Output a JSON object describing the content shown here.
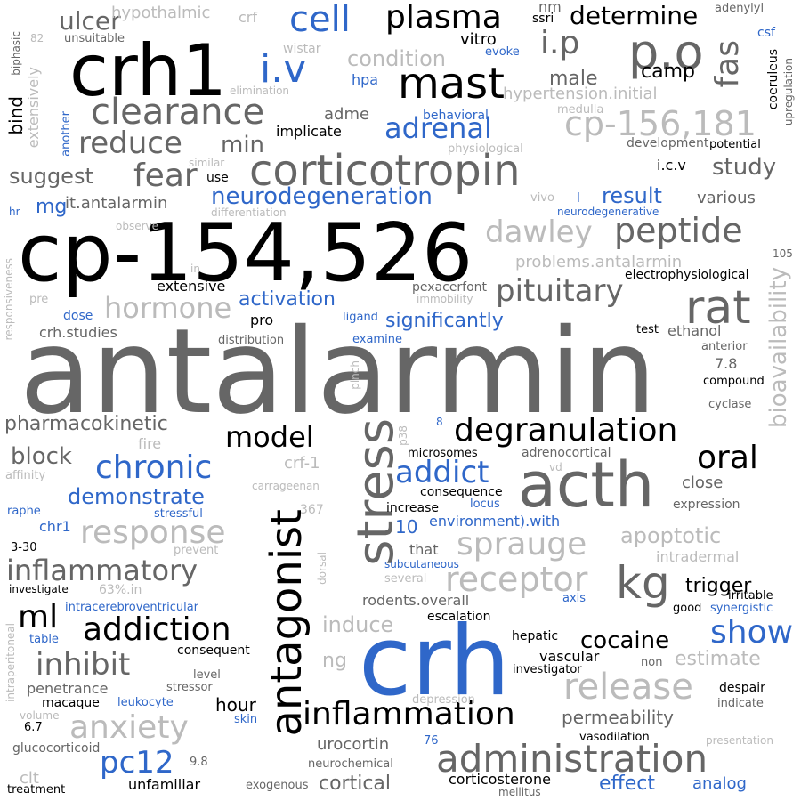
{
  "words": [
    "antalarmin",
    "cp-154,526",
    "crh",
    "crh1",
    "acth",
    "corticotropin",
    "stress",
    "antagonist",
    "mast",
    "cell",
    "plasma",
    "i.v",
    "p.o",
    "i.p",
    "fas",
    "clearance",
    "reduce",
    "fear",
    "kg",
    "rat",
    "peptide",
    "pituitary",
    "dawley",
    "hormone",
    "response",
    "chronic",
    "inflammatory",
    "inhibit",
    "anxiety",
    "addiction",
    "ml",
    "model",
    "degranulation",
    "oral",
    "administration",
    "inflammation",
    "release",
    "show",
    "pc12",
    "cocaine",
    "receptor",
    "sprauge",
    "adrenal",
    "addict",
    "activation",
    "neurodegeneration",
    "significantly",
    "demonstrate",
    "bioavailability",
    "cp-156,181",
    "determine",
    "condition",
    "ulcer",
    "min",
    "mg",
    "suggest",
    "study",
    "result",
    "camp",
    "male",
    "adme",
    "block",
    "hypothalmic",
    "crf",
    "adenylyl",
    "ssri",
    "nm",
    "vitro",
    "evoke",
    "hpa",
    "csf",
    "coeruleus",
    "upregulation",
    "medulla",
    "hypertension.initial",
    "elimination",
    "wistar",
    "unsuitable",
    "82",
    "biphasic",
    "extensively",
    "bind",
    "another",
    "behavioral",
    "implicate",
    "physiological",
    "development",
    "potential",
    "i.c.v",
    "similar",
    "use",
    "it.antalarmin",
    "vivo",
    "l",
    "various",
    "neurodegenerative",
    "differentiation",
    "hr",
    "observe",
    "problems.antalarmin",
    "105",
    "electrophysiological",
    "in",
    "extensive",
    "pexacerfont",
    "immobility",
    "pre",
    "dose",
    "ligand",
    "pro",
    "crh.studies",
    "distribution",
    "examine",
    "responsiveness",
    "test",
    "ethanol",
    "anterior",
    "pinch",
    "7.8",
    "compound",
    "cyclase",
    "pharmacokinetic",
    "fire",
    "p38",
    "8",
    "microsomes",
    "adrenocortical",
    "affinity",
    "crf-1",
    "carrageenan",
    "consequence",
    "vd",
    "increase",
    "locus",
    "close",
    "expression",
    "raphe",
    "stressful",
    "367",
    "environment).with",
    "10",
    "chr1",
    "apoptotic",
    "3-30",
    "prevent",
    "subcutaneous",
    "that",
    "intradermal",
    "dorsal",
    "several",
    "trigger",
    "investigate",
    "63%.in",
    "axis",
    "rodents.overall",
    "irritable",
    "good",
    "synergistic",
    "intracerebroventricular",
    "escalation",
    "intraperitoneal",
    "table",
    "consequent",
    "induce",
    "hepatic",
    "level",
    "ng",
    "vascular",
    "non",
    "investigator",
    "estimate",
    "stressor",
    "penetrance",
    "macaque",
    "leukocyte",
    "hour",
    "depression",
    "despair",
    "indicate",
    "volume",
    "6.7",
    "skin",
    "permeability",
    "glucocorticoid",
    "76",
    "presentation",
    "9.8",
    "vasodilation",
    "urocortin",
    "clt",
    "neurochemical",
    "unfamiliar",
    "exogenous",
    "cortical",
    "corticosterone",
    "effect",
    "analog",
    "treatment",
    "mellitus"
  ]
}
